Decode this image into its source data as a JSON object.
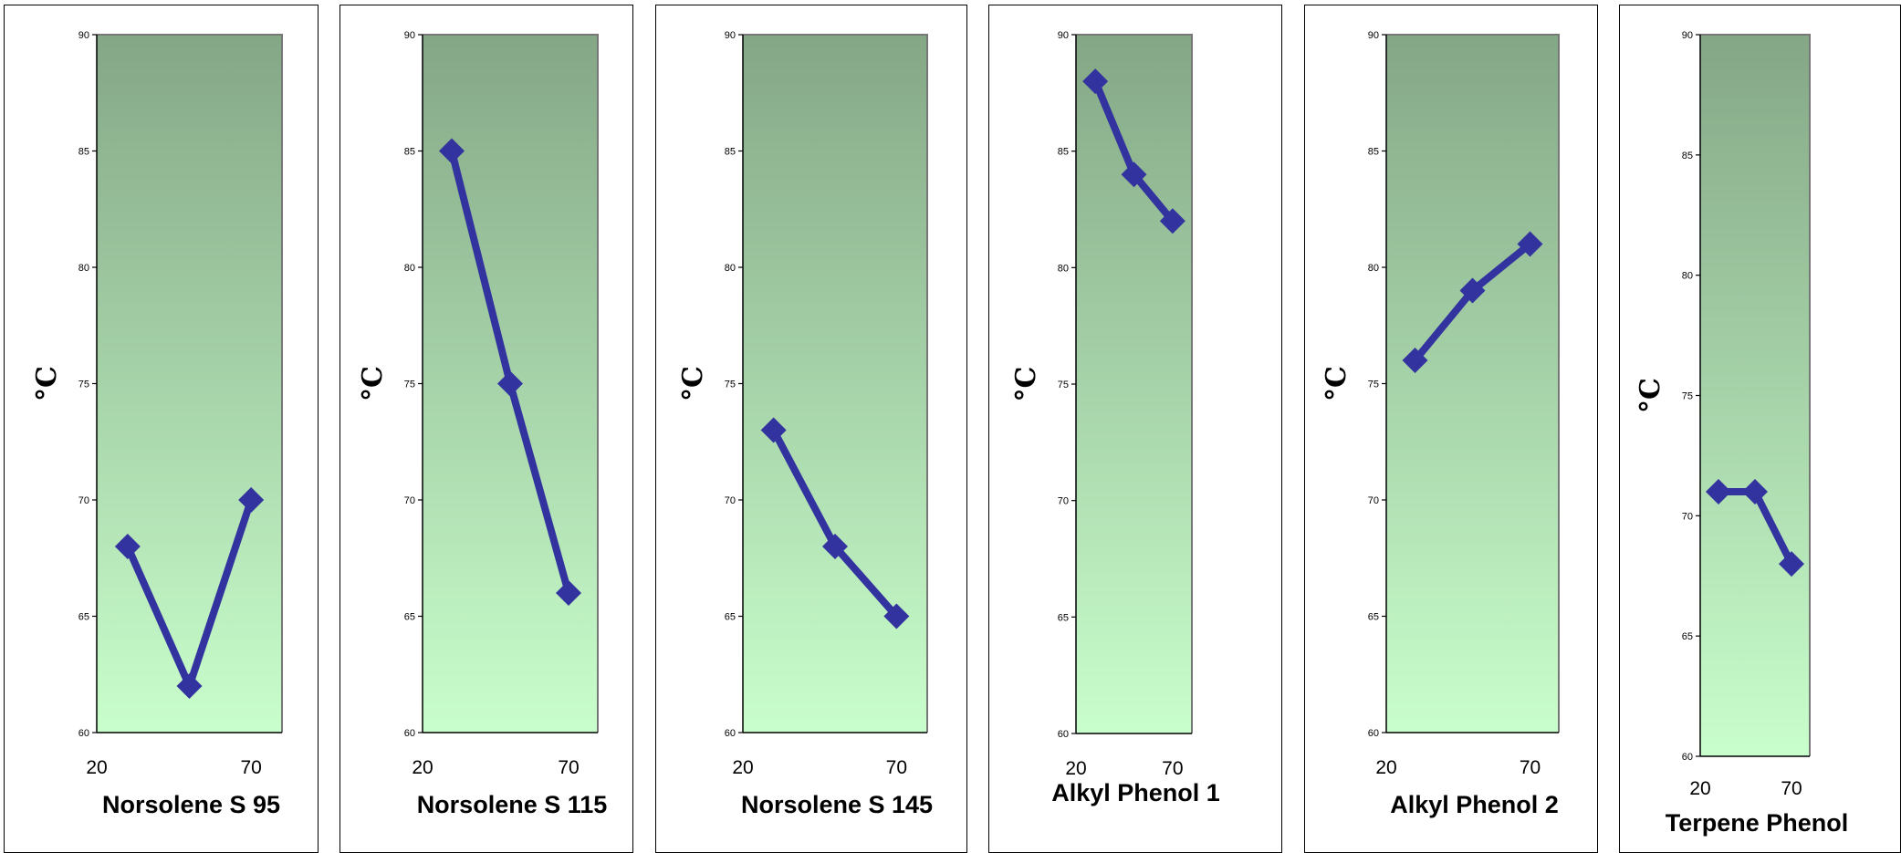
{
  "chart_data": [
    {
      "type": "line",
      "xlabel": "Norsolene S 95",
      "ylabel": "°C",
      "x_ticks": [
        "20",
        "70"
      ],
      "y_ticks": [
        "60",
        "65",
        "70",
        "75",
        "80",
        "85",
        "90"
      ],
      "ylim": [
        60,
        90
      ],
      "xlim": [
        20,
        80
      ],
      "x": [
        30,
        50,
        70
      ],
      "values": [
        68,
        62,
        70
      ],
      "colors": {
        "line": "#3333a0",
        "bg_top": "#84a786",
        "bg_bottom": "#c9ffcc"
      }
    },
    {
      "type": "line",
      "xlabel": "Norsolene S 115",
      "ylabel": "°C",
      "x_ticks": [
        "20",
        "70"
      ],
      "y_ticks": [
        "60",
        "65",
        "70",
        "75",
        "80",
        "85",
        "90"
      ],
      "ylim": [
        60,
        90
      ],
      "xlim": [
        20,
        80
      ],
      "x": [
        30,
        50,
        70
      ],
      "values": [
        85,
        75,
        66
      ],
      "colors": {
        "line": "#3333a0",
        "bg_top": "#84a786",
        "bg_bottom": "#c9ffcc"
      }
    },
    {
      "type": "line",
      "xlabel": "Norsolene S 145",
      "ylabel": "°C",
      "x_ticks": [
        "20",
        "70"
      ],
      "y_ticks": [
        "60",
        "65",
        "70",
        "75",
        "80",
        "85",
        "90"
      ],
      "ylim": [
        60,
        90
      ],
      "xlim": [
        20,
        80
      ],
      "x": [
        30,
        50,
        70
      ],
      "values": [
        73,
        68,
        65
      ],
      "colors": {
        "line": "#3333a0",
        "bg_top": "#84a786",
        "bg_bottom": "#c9ffcc"
      }
    },
    {
      "type": "line",
      "xlabel": "Alkyl Phenol 1",
      "ylabel": "°C",
      "x_ticks": [
        "20",
        "70"
      ],
      "y_ticks": [
        "60",
        "65",
        "70",
        "75",
        "80",
        "85",
        "90"
      ],
      "ylim": [
        60,
        90
      ],
      "xlim": [
        20,
        80
      ],
      "x": [
        30,
        50,
        70
      ],
      "values": [
        88,
        84,
        82
      ],
      "colors": {
        "line": "#3333a0",
        "bg_top": "#84a786",
        "bg_bottom": "#c9ffcc"
      }
    },
    {
      "type": "line",
      "xlabel": "Alkyl Phenol 2",
      "ylabel": "°C",
      "x_ticks": [
        "20",
        "70"
      ],
      "y_ticks": [
        "60",
        "65",
        "70",
        "75",
        "80",
        "85",
        "90"
      ],
      "ylim": [
        60,
        90
      ],
      "xlim": [
        20,
        80
      ],
      "x": [
        30,
        50,
        70
      ],
      "values": [
        76,
        79,
        81
      ],
      "colors": {
        "line": "#3333a0",
        "bg_top": "#84a786",
        "bg_bottom": "#c9ffcc"
      }
    },
    {
      "type": "line",
      "xlabel": "Terpene Phenol",
      "ylabel": "°C",
      "x_ticks": [
        "20",
        "70"
      ],
      "y_ticks": [
        "60",
        "65",
        "70",
        "75",
        "80",
        "85",
        "90"
      ],
      "ylim": [
        60,
        90
      ],
      "xlim": [
        20,
        80
      ],
      "x": [
        30,
        50,
        70
      ],
      "values": [
        71,
        71,
        68
      ],
      "colors": {
        "line": "#3333a0",
        "bg_top": "#84a786",
        "bg_bottom": "#c9ffcc"
      }
    }
  ]
}
